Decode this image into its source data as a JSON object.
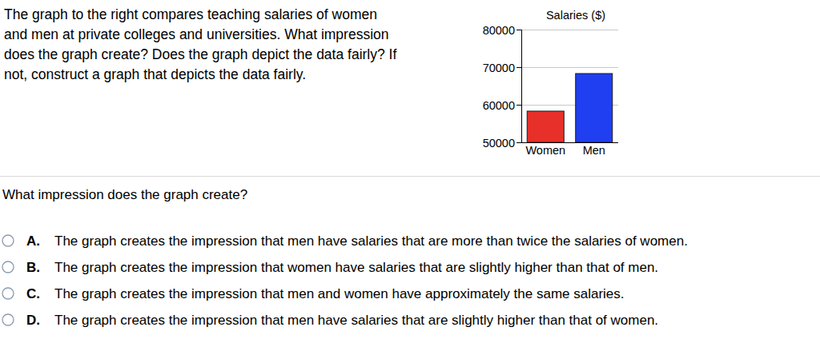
{
  "question": {
    "lines": [
      "The graph to the right compares teaching salaries of women",
      "and men at private colleges and universities. What impression",
      "does the graph create? Does the graph depict the data fairly? If",
      "not, construct a graph that depicts the data fairly."
    ]
  },
  "prompt": "What impression does the graph create?",
  "options": [
    {
      "letter": "A.",
      "text": "The graph creates the impression that men have salaries that are more than twice the salaries of women."
    },
    {
      "letter": "B.",
      "text": "The graph creates the impression that women have salaries that are slightly higher than that of men."
    },
    {
      "letter": "C.",
      "text": "The graph creates the impression that men and women have approximately the same salaries."
    },
    {
      "letter": "D.",
      "text": "The graph creates the impression that men have salaries that are slightly higher than that of women."
    }
  ],
  "chart_data": {
    "type": "bar",
    "title": "Salaries ($)",
    "categories": [
      "Women",
      "Men"
    ],
    "values": [
      58300,
      68300
    ],
    "colors": [
      "#e8302a",
      "#1f3ff0"
    ],
    "ylim": [
      50000,
      80000
    ],
    "yticks": [
      50000,
      60000,
      70000,
      80000
    ],
    "grid": true
  }
}
